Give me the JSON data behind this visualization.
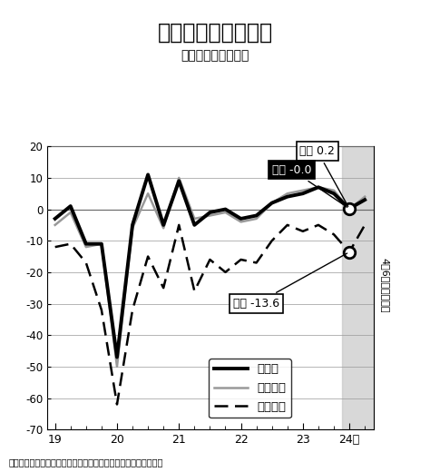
{
  "title": "企業の景況判断指数",
  "subtitle": "（規模別、全産業）",
  "footer": "（財務省・内閣府「法人企業景気予測調査」の資料を基に作成）",
  "ylim": [
    -70,
    20
  ],
  "yticks": [
    -70,
    -60,
    -50,
    -40,
    -30,
    -20,
    -10,
    0,
    10,
    20
  ],
  "xticks_labels": [
    "19",
    "20",
    "21",
    "22",
    "23",
    "24年"
  ],
  "annotation1": "現状 0.2",
  "annotation2": "現状 -0.0",
  "annotation3": "現状 -13.6",
  "right_label": "4－6月（見通し）",
  "legend_large": "大企業",
  "legend_medium": "中堅企業",
  "legend_small": "中小企業",
  "x_large": [
    0,
    1,
    2,
    3,
    4,
    5,
    6,
    7,
    8,
    9,
    10,
    11,
    12,
    13,
    14,
    15,
    16,
    17,
    18,
    19,
    20
  ],
  "y_large": [
    -3,
    1,
    -11,
    -11,
    -47,
    -5,
    11,
    -5,
    9,
    -5,
    -1,
    0,
    -3,
    -2,
    2,
    4,
    5,
    7,
    5,
    0.2,
    3
  ],
  "x_medium": [
    0,
    1,
    2,
    3,
    4,
    5,
    6,
    7,
    8,
    9,
    10,
    11,
    12,
    13,
    14,
    15,
    16,
    17,
    18,
    19,
    20
  ],
  "y_medium": [
    -5,
    -1,
    -12,
    -11,
    -50,
    -6,
    5,
    -6,
    10,
    -3,
    -2,
    -1,
    -4,
    -3,
    2,
    5,
    6,
    7,
    6,
    0.0,
    4
  ],
  "x_small": [
    0,
    1,
    2,
    3,
    4,
    5,
    6,
    7,
    8,
    9,
    10,
    11,
    12,
    13,
    14,
    15,
    16,
    17,
    18,
    19,
    20
  ],
  "y_small": [
    -12,
    -11,
    -17,
    -32,
    -62,
    -32,
    -15,
    -25,
    -5,
    -26,
    -16,
    -20,
    -16,
    -17,
    -10,
    -5,
    -7,
    -5,
    -8,
    -13.6,
    -5
  ],
  "x_tick_positions": [
    0,
    4,
    8,
    12,
    16,
    19
  ],
  "shaded_x_start": 18.5
}
